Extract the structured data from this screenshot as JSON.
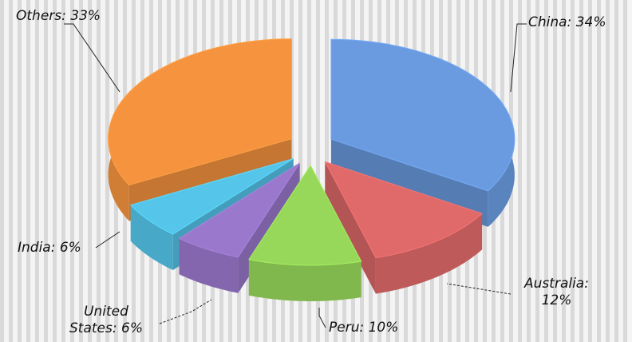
{
  "chart_data": {
    "type": "pie",
    "labels": [
      "China: 34%",
      "Australia: 12%",
      "Peru: 10%",
      "United States: 6%",
      "India: 6%",
      "Others: 33%"
    ],
    "values": [
      34,
      12,
      10,
      6,
      6,
      33
    ],
    "colors": [
      "#6a9be0",
      "#e06a6a",
      "#97d85a",
      "#9a78cc",
      "#55c6ea",
      "#f5933f"
    ]
  }
}
